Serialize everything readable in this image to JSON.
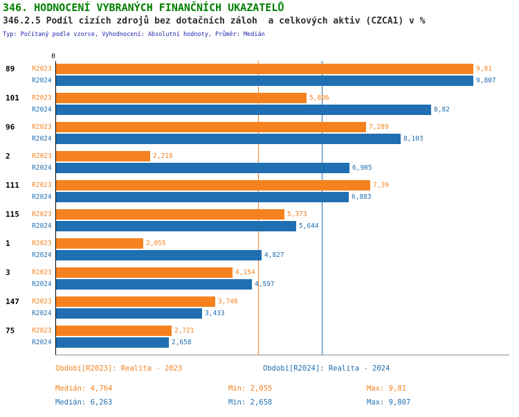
{
  "header": {
    "title": "346. HODNOCENÍ VYBRANÝCH FINANČNÍCH UKAZATELŮ",
    "subtitle": "346.2.5 Podíl cizích zdrojů bez dotačních záloh  a celkových aktiv (CZCA1) v %",
    "meta": "Typ: Počítaný podle vzorce, Vyhodnocení: Absolutní hodnoty, Průměr: Medián"
  },
  "colors": {
    "title": "#008000",
    "r2023": "#F5821F",
    "r2024": "#1F6FB2",
    "meta_text": "#1f1fb4",
    "axis": "#000000",
    "baseline": "#8a8a8a"
  },
  "chart_data": {
    "type": "bar",
    "orientation": "horizontal",
    "title": "346.2.5 Podíl cizích zdrojů bez dotačních záloh  a celkových aktiv (CZCA1) v %",
    "xlabel": "",
    "ylabel": "",
    "xlim": [
      0,
      10
    ],
    "zero_label": "0",
    "grid": false,
    "categories": [
      "89",
      "101",
      "96",
      "2",
      "111",
      "115",
      "1",
      "3",
      "147",
      "75"
    ],
    "series": [
      {
        "name": "R2023",
        "color": "#F5821F",
        "values": [
          9.81,
          5.886,
          7.289,
          2.218,
          7.39,
          5.373,
          2.055,
          4.154,
          3.748,
          2.721
        ],
        "labels": [
          "9,81",
          "5,886",
          "7,289",
          "2,218",
          "7,39",
          "5,373",
          "2,055",
          "4,154",
          "3,748",
          "2,721"
        ]
      },
      {
        "name": "R2024",
        "color": "#1F6FB2",
        "values": [
          9.807,
          8.82,
          8.103,
          6.905,
          6.883,
          5.644,
          4.827,
          4.597,
          3.433,
          2.658
        ],
        "labels": [
          "9,807",
          "8,82",
          "8,103",
          "6,905",
          "6,883",
          "5,644",
          "4,827",
          "4,597",
          "3,433",
          "2,658"
        ]
      }
    ],
    "reference_lines": [
      {
        "name": "median-2023",
        "value": 4.764,
        "color": "#F5821F"
      },
      {
        "name": "median-2024",
        "value": 6.263,
        "color": "#1F6FB2"
      }
    ],
    "legend_position": "bottom"
  },
  "legend": {
    "r2023": "Období[R2023]: Realita - 2023",
    "r2024": "Období[R2024]: Realita - 2024"
  },
  "stats": {
    "r2023": {
      "median": "Medián: 4,764",
      "min": "Min: 2,055",
      "max": "Max: 9,81"
    },
    "r2024": {
      "median": "Medián: 6,263",
      "min": "Min: 2,658",
      "max": "Max: 9,807"
    }
  }
}
